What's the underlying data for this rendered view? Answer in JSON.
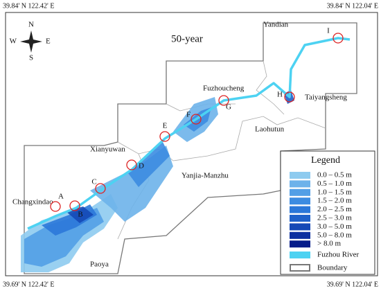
{
  "corners": {
    "top_left": "39.84' N 122.42' E",
    "top_right": "39.84' N 122.04' E",
    "bottom_left": "39.69' N 122.42' E",
    "bottom_right": "39.69' N 122.04' E"
  },
  "title": "50-year",
  "compass": {
    "n": "N",
    "s": "S",
    "e": "E",
    "w": "W"
  },
  "places": [
    "Yandian",
    "Taiyangsheng",
    "Fuzhoucheng",
    "Laohutun",
    "Xianyuwan",
    "Yanjia-Manzhu",
    "Changxindao",
    "Paoya"
  ],
  "points": [
    "A",
    "B",
    "C",
    "D",
    "E",
    "F",
    "G",
    "H",
    "I"
  ],
  "legend": {
    "title": "Legend",
    "items": [
      {
        "label": "0.0 – 0.5 m",
        "color": "#8ecbef"
      },
      {
        "label": "0.5 – 1.0 m",
        "color": "#6db2ea"
      },
      {
        "label": "1.0 – 1.5 m",
        "color": "#529fe6"
      },
      {
        "label": "1.5 – 2.0 m",
        "color": "#3c8ce1"
      },
      {
        "label": "2.0 – 2.5 m",
        "color": "#2b78d9"
      },
      {
        "label": "2.5 – 3.0 m",
        "color": "#1f62ca"
      },
      {
        "label": "3.0 – 5.0 m",
        "color": "#1549b6"
      },
      {
        "label": "5.0 – 8.0 m",
        "color": "#0c31a0"
      },
      {
        "label": "> 8.0 m",
        "color": "#061d8a"
      }
    ],
    "river": {
      "label": "Fuzhou River",
      "color": "#4dd2f2"
    },
    "boundary": {
      "label": "Boundary"
    }
  }
}
